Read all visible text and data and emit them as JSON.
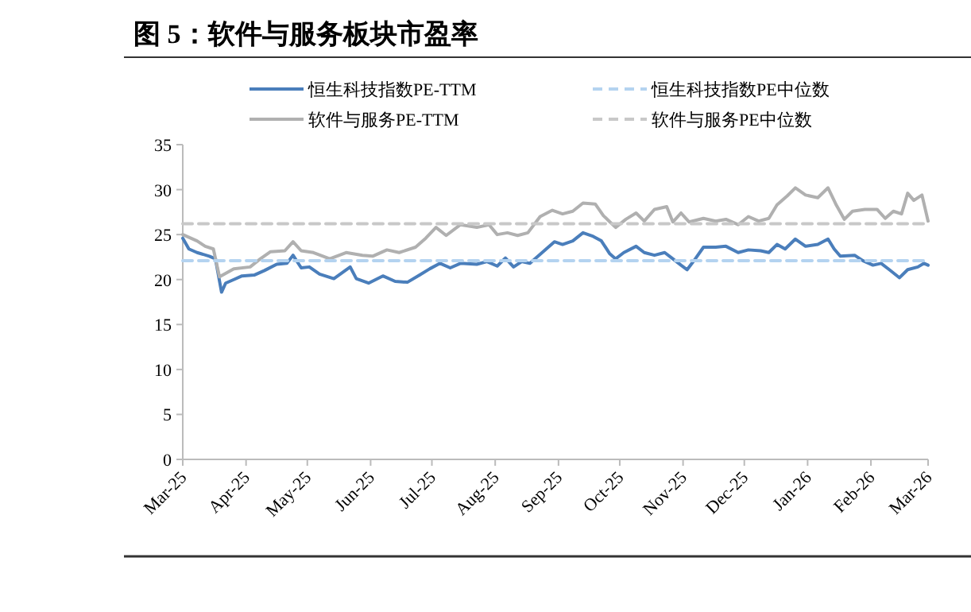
{
  "chart_data": {
    "type": "line",
    "title": "图 5：软件与服务板块市盈率",
    "legend": "top",
    "ylim": [
      0,
      35
    ],
    "yticks": [
      0,
      5,
      10,
      15,
      20,
      25,
      30,
      35
    ],
    "xlim": [
      "2025-03-01",
      "2026-03-01"
    ],
    "xticks": [
      {
        "value": "2025-03-01",
        "label": "Mar-25"
      },
      {
        "value": "2025-04-01",
        "label": "Apr-25"
      },
      {
        "value": "2025-05-01",
        "label": "May-25"
      },
      {
        "value": "2025-06-01",
        "label": "Jun-25"
      },
      {
        "value": "2025-07-01",
        "label": "Jul-25"
      },
      {
        "value": "2025-08-01",
        "label": "Aug-25"
      },
      {
        "value": "2025-09-01",
        "label": "Sep-25"
      },
      {
        "value": "2025-10-01",
        "label": "Oct-25"
      },
      {
        "value": "2025-11-01",
        "label": "Nov-25"
      },
      {
        "value": "2025-12-01",
        "label": "Dec-25"
      },
      {
        "value": "2026-01-01",
        "label": "Jan-26"
      },
      {
        "value": "2026-02-01",
        "label": "Feb-26"
      },
      {
        "value": "2026-03-01",
        "label": "Mar-26"
      }
    ],
    "series": [
      {
        "name": "恒生科技指数PE-TTM",
        "color": "#4a7ebb",
        "x": [
          "2025-03-01",
          "2025-03-04",
          "2025-03-08",
          "2025-03-14",
          "2025-03-17",
          "2025-03-20",
          "2025-03-22",
          "2025-03-26",
          "2025-03-30",
          "2025-04-05",
          "2025-04-10",
          "2025-04-16",
          "2025-04-21",
          "2025-04-24",
          "2025-04-28",
          "2025-05-02",
          "2025-05-07",
          "2025-05-14",
          "2025-05-22",
          "2025-05-25",
          "2025-05-31",
          "2025-06-07",
          "2025-06-13",
          "2025-06-19",
          "2025-06-25",
          "2025-06-30",
          "2025-07-05",
          "2025-07-10",
          "2025-07-15",
          "2025-07-23",
          "2025-07-28",
          "2025-08-02",
          "2025-08-06",
          "2025-08-10",
          "2025-08-14",
          "2025-08-18",
          "2025-08-25",
          "2025-08-30",
          "2025-09-03",
          "2025-09-08",
          "2025-09-13",
          "2025-09-18",
          "2025-09-22",
          "2025-09-26",
          "2025-09-29",
          "2025-10-03",
          "2025-10-09",
          "2025-10-13",
          "2025-10-18",
          "2025-10-23",
          "2025-10-27",
          "2025-10-31",
          "2025-11-03",
          "2025-11-07",
          "2025-11-11",
          "2025-11-17",
          "2025-11-22",
          "2025-11-28",
          "2025-12-03",
          "2025-12-09",
          "2025-12-13",
          "2025-12-17",
          "2025-12-21",
          "2025-12-26",
          "2025-12-31",
          "2026-01-06",
          "2026-01-11",
          "2026-01-14",
          "2026-01-17",
          "2026-01-24",
          "2026-01-28",
          "2026-02-02",
          "2026-02-06",
          "2026-02-10",
          "2026-02-15",
          "2026-02-19",
          "2026-02-24",
          "2026-02-27",
          "2026-03-01"
        ],
        "values": [
          24.6,
          23.4,
          23.0,
          22.6,
          22.3,
          18.6,
          19.6,
          20.0,
          20.4,
          20.5,
          21.0,
          21.7,
          21.8,
          22.7,
          21.3,
          21.4,
          20.6,
          20.1,
          21.4,
          20.1,
          19.6,
          20.4,
          19.8,
          19.7,
          20.5,
          21.2,
          21.8,
          21.3,
          21.8,
          21.7,
          22.0,
          21.5,
          22.4,
          21.4,
          22.0,
          21.8,
          23.2,
          24.2,
          23.9,
          24.3,
          25.2,
          24.8,
          24.3,
          22.9,
          22.3,
          23.0,
          23.7,
          23.0,
          22.7,
          23.0,
          22.3,
          21.6,
          21.1,
          22.3,
          23.6,
          23.6,
          23.7,
          23.0,
          23.3,
          23.2,
          23.0,
          23.9,
          23.4,
          24.5,
          23.7,
          23.9,
          24.5,
          23.4,
          22.6,
          22.7,
          22.1,
          21.6,
          21.8,
          21.1,
          20.2,
          21.1,
          21.4,
          21.8,
          21.6
        ]
      },
      {
        "name": "软件与服务PE-TTM",
        "color": "#b0b0b0",
        "x": [
          "2025-03-01",
          "2025-03-08",
          "2025-03-12",
          "2025-03-16",
          "2025-03-19",
          "2025-03-26",
          "2025-04-03",
          "2025-04-08",
          "2025-04-13",
          "2025-04-20",
          "2025-04-24",
          "2025-04-28",
          "2025-05-04",
          "2025-05-12",
          "2025-05-20",
          "2025-05-28",
          "2025-06-02",
          "2025-06-09",
          "2025-06-15",
          "2025-06-23",
          "2025-06-28",
          "2025-07-03",
          "2025-07-08",
          "2025-07-15",
          "2025-07-23",
          "2025-07-29",
          "2025-08-02",
          "2025-08-07",
          "2025-08-12",
          "2025-08-17",
          "2025-08-23",
          "2025-08-29",
          "2025-09-03",
          "2025-09-08",
          "2025-09-13",
          "2025-09-19",
          "2025-09-23",
          "2025-09-29",
          "2025-10-04",
          "2025-10-09",
          "2025-10-13",
          "2025-10-18",
          "2025-10-24",
          "2025-10-27",
          "2025-10-31",
          "2025-11-04",
          "2025-11-11",
          "2025-11-17",
          "2025-11-22",
          "2025-11-28",
          "2025-12-03",
          "2025-12-08",
          "2025-12-13",
          "2025-12-17",
          "2025-12-22",
          "2025-12-26",
          "2025-12-31",
          "2026-01-06",
          "2026-01-11",
          "2026-01-15",
          "2026-01-19",
          "2026-01-23",
          "2026-01-29",
          "2026-02-04",
          "2026-02-08",
          "2026-02-12",
          "2026-02-16",
          "2026-02-19",
          "2026-02-22",
          "2026-02-26",
          "2026-03-01"
        ],
        "values": [
          25.0,
          24.3,
          23.7,
          23.4,
          20.3,
          21.2,
          21.4,
          22.3,
          23.1,
          23.2,
          24.2,
          23.2,
          23.0,
          22.3,
          23.0,
          22.7,
          22.6,
          23.3,
          23.0,
          23.6,
          24.6,
          25.8,
          24.9,
          26.1,
          25.8,
          26.1,
          25.0,
          25.2,
          24.9,
          25.2,
          27.0,
          27.7,
          27.3,
          27.6,
          28.5,
          28.4,
          27.1,
          25.8,
          26.7,
          27.4,
          26.5,
          27.8,
          28.1,
          26.4,
          27.4,
          26.4,
          26.8,
          26.5,
          26.7,
          26.1,
          27.0,
          26.5,
          26.8,
          28.3,
          29.3,
          30.2,
          29.4,
          29.1,
          30.2,
          28.3,
          26.7,
          27.6,
          27.8,
          27.8,
          26.8,
          27.6,
          27.3,
          29.6,
          28.8,
          29.4,
          26.5
        ]
      },
      {
        "name": "恒生科技指数PE中位数",
        "color": "#b4d3f0",
        "line_style": "dashed",
        "x": [
          "2025-03-01",
          "2026-03-01"
        ],
        "values": [
          22.1,
          22.1
        ]
      },
      {
        "name": "软件与服务PE中位数",
        "color": "#c8c8c8",
        "line_style": "dashed",
        "x": [
          "2025-03-01",
          "2026-03-01"
        ],
        "values": [
          26.2,
          26.2
        ]
      }
    ]
  }
}
